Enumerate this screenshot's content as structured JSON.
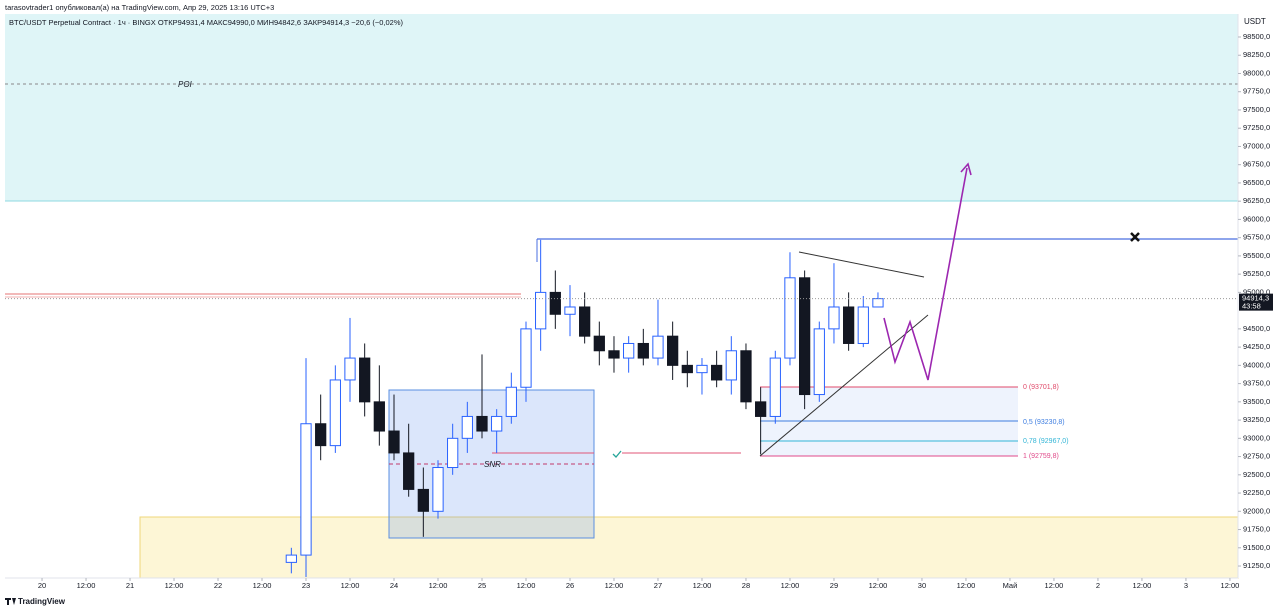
{
  "header": {
    "published": "tarasovtrader1 опубликовал(а) на TradingView.com, Апр 29, 2025 13:16 UTC+3",
    "legend": "BTC/USDT Perpetual Contract · 1ч · BINGX   ОТКР94931,4   МАКС94990,0   МИН94842,6   ЗАКР94914,3   −20,6 (−0,02%)"
  },
  "footer": {
    "brand": "TradingView"
  },
  "chart_data": {
    "type": "candlestick",
    "currency": "USDT",
    "ylim": [
      91086,
      98815
    ],
    "yticks": [
      {
        "value": 91250,
        "label": "91250,0"
      },
      {
        "value": 91500,
        "label": "91500,0"
      },
      {
        "value": 91750,
        "label": "91750,0"
      },
      {
        "value": 92000,
        "label": "92000,0"
      },
      {
        "value": 92250,
        "label": "92250,0"
      },
      {
        "value": 92500,
        "label": "92500,0"
      },
      {
        "value": 92750,
        "label": "92750,0"
      },
      {
        "value": 93000,
        "label": "93000,0"
      },
      {
        "value": 93250,
        "label": "93250,0"
      },
      {
        "value": 93500,
        "label": "93500,0"
      },
      {
        "value": 93750,
        "label": "93750,0"
      },
      {
        "value": 94000,
        "label": "94000,0"
      },
      {
        "value": 94250,
        "label": "94250,0"
      },
      {
        "value": 94500,
        "label": "94500,0"
      },
      {
        "value": 95000,
        "label": "95000,0"
      },
      {
        "value": 95250,
        "label": "95250,0"
      },
      {
        "value": 95500,
        "label": "95500,0"
      },
      {
        "value": 95750,
        "label": "95750,0"
      },
      {
        "value": 96000,
        "label": "96000,0"
      },
      {
        "value": 96250,
        "label": "96250,0"
      },
      {
        "value": 96500,
        "label": "96500,0"
      },
      {
        "value": 96750,
        "label": "96750,0"
      },
      {
        "value": 97000,
        "label": "97000,0"
      },
      {
        "value": 97250,
        "label": "97250,0"
      },
      {
        "value": 97500,
        "label": "97500,0"
      },
      {
        "value": 97750,
        "label": "97750,0"
      },
      {
        "value": 98000,
        "label": "98000,0"
      },
      {
        "value": 98250,
        "label": "98250,0"
      },
      {
        "value": 98500,
        "label": "98500,0"
      }
    ],
    "xlim": [
      -10.1,
      326.2
    ],
    "xticks": [
      {
        "value": 0,
        "label": "20"
      },
      {
        "value": 12,
        "label": "12:00"
      },
      {
        "value": 24,
        "label": "21"
      },
      {
        "value": 36,
        "label": "12:00"
      },
      {
        "value": 48,
        "label": "22"
      },
      {
        "value": 60,
        "label": "12:00"
      },
      {
        "value": 72,
        "label": "23"
      },
      {
        "value": 84,
        "label": "12:00"
      },
      {
        "value": 96,
        "label": "24"
      },
      {
        "value": 108,
        "label": "12:00"
      },
      {
        "value": 120,
        "label": "25"
      },
      {
        "value": 132,
        "label": "12:00"
      },
      {
        "value": 144,
        "label": "26"
      },
      {
        "value": 156,
        "label": "12:00"
      },
      {
        "value": 168,
        "label": "27"
      },
      {
        "value": 180,
        "label": "12:00"
      },
      {
        "value": 192,
        "label": "28"
      },
      {
        "value": 204,
        "label": "12:00"
      },
      {
        "value": 216,
        "label": "29"
      },
      {
        "value": 228,
        "label": "12:00"
      },
      {
        "value": 240,
        "label": "30"
      },
      {
        "value": 252,
        "label": "12:00"
      },
      {
        "value": 264,
        "label": "Май"
      },
      {
        "value": 276,
        "label": "12:00"
      },
      {
        "value": 288,
        "label": "2"
      },
      {
        "value": 300,
        "label": "12:00"
      },
      {
        "value": 312,
        "label": "3"
      },
      {
        "value": 324,
        "label": "12:00"
      }
    ],
    "x": [
      68,
      72,
      76,
      80,
      84,
      88,
      92,
      96,
      100,
      104,
      108,
      112,
      116,
      120,
      124,
      128,
      132,
      136,
      140,
      144,
      148,
      152,
      156,
      160,
      164,
      168,
      172,
      176,
      180,
      184,
      188,
      192,
      196,
      200,
      204,
      208,
      212,
      216,
      220,
      224,
      228
    ],
    "open": [
      91300,
      91400,
      93200,
      92900,
      93800,
      94100,
      93500,
      93100,
      92800,
      92300,
      92000,
      92600,
      93000,
      93300,
      93100,
      93300,
      93700,
      94500,
      95000,
      94700,
      94800,
      94400,
      94200,
      94100,
      94300,
      94100,
      94400,
      94000,
      93900,
      94000,
      93800,
      94200,
      93500,
      93300,
      94100,
      95200,
      93600,
      94500,
      94800,
      94300,
      94800
    ],
    "high": [
      91500,
      94100,
      93600,
      94000,
      94650,
      94300,
      94000,
      93600,
      93200,
      92600,
      92700,
      93200,
      93500,
      94150,
      93400,
      93900,
      94600,
      95720,
      95300,
      95100,
      95000,
      94600,
      94400,
      94400,
      94500,
      94900,
      94600,
      94200,
      94100,
      94200,
      94400,
      94300,
      93700,
      94200,
      95550,
      95300,
      94600,
      95400,
      95000,
      94950,
      95000
    ],
    "low": [
      91150,
      91100,
      92700,
      92800,
      93500,
      93300,
      92900,
      92700,
      92200,
      91650,
      91900,
      92500,
      92800,
      93000,
      92800,
      93200,
      93500,
      94200,
      94500,
      94400,
      94300,
      94000,
      93900,
      93900,
      94000,
      94000,
      93800,
      93700,
      93600,
      93700,
      93600,
      93400,
      92780,
      93200,
      94000,
      93400,
      93500,
      94300,
      94200,
      94250,
      94800
    ],
    "close": [
      91400,
      93200,
      92900,
      93800,
      94100,
      93500,
      93100,
      92800,
      92300,
      92000,
      92600,
      93000,
      93300,
      93100,
      93300,
      93700,
      94500,
      95000,
      94700,
      94800,
      94400,
      94200,
      94100,
      94300,
      94100,
      94400,
      94000,
      93900,
      94000,
      93800,
      94200,
      93500,
      93300,
      94100,
      95200,
      93600,
      94500,
      94800,
      94300,
      94800,
      94914.3
    ],
    "up_color": "#2962ff",
    "down_color": "#131722",
    "last_price": {
      "value": 94914.3,
      "label": "94914,3"
    },
    "countdown": "43:58",
    "annotations": {
      "poi": "POI",
      "snr": "SNR",
      "fib": [
        "0 (93701,8)",
        "0,5 (93230,8)",
        "0,78 (92967,0)",
        "1 (92759,8)"
      ]
    }
  }
}
